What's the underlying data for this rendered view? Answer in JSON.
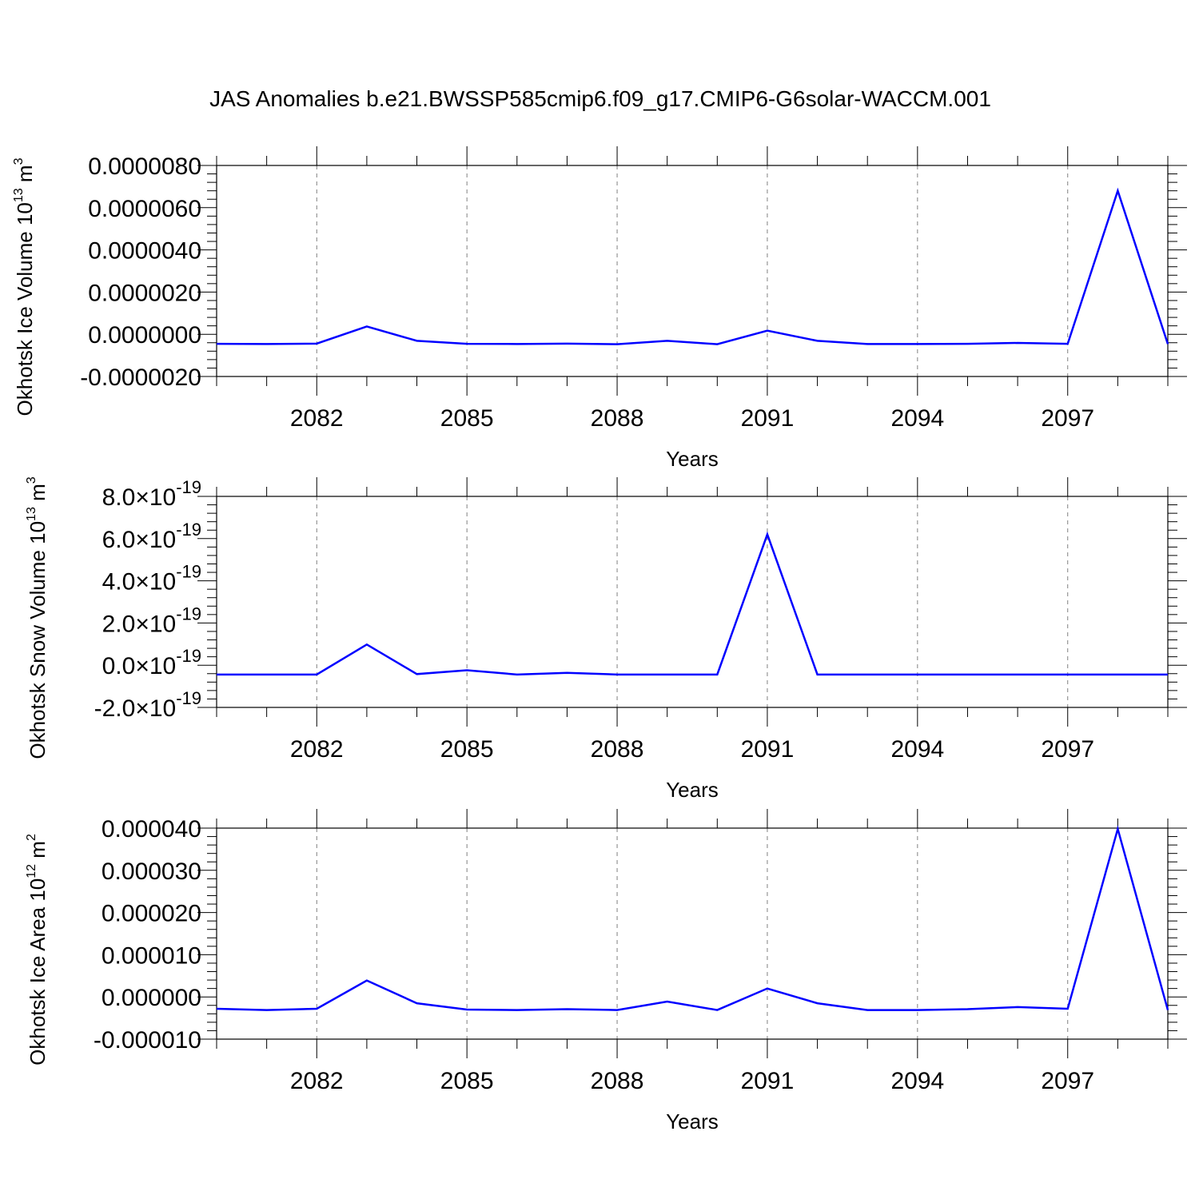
{
  "title": "JAS Anomalies b.e21.BWSSP585cmip6.f09_g17.CMIP6-G6solar-WACCM.001",
  "colors": {
    "line": "#0000ff",
    "axis": "#000000",
    "grid": "#808080"
  },
  "chart_data": [
    {
      "type": "line",
      "ylabel": {
        "text": "Okhotsk Ice Volume 10",
        "sup": "13",
        "unit": " m",
        "unit_sup": "3"
      },
      "xlabel": "Years",
      "xlim": [
        2080,
        2099
      ],
      "ylim": [
        -2e-06,
        8e-06
      ],
      "x_ticks": [
        "2082",
        "2085",
        "2088",
        "2091",
        "2094",
        "2097"
      ],
      "y_ticks": [
        {
          "value": 8e-06,
          "label": "0.0000080"
        },
        {
          "value": 6e-06,
          "label": "0.0000060"
        },
        {
          "value": 4e-06,
          "label": "0.0000040"
        },
        {
          "value": 2e-06,
          "label": "0.0000020"
        },
        {
          "value": 0.0,
          "label": "0.0000000"
        },
        {
          "value": -2e-06,
          "label": "-0.0000020"
        }
      ],
      "grid": "vertical dashed at major x ticks",
      "series": [
        {
          "x": [
            2080,
            2081,
            2082,
            2083,
            2084,
            2085,
            2086,
            2087,
            2088,
            2089,
            2090,
            2091,
            2092,
            2093,
            2094,
            2095,
            2096,
            2097,
            2098,
            2099
          ],
          "values": [
            -4.5e-07,
            -4.6e-07,
            -4.4e-07,
            3.7e-07,
            -3.1e-07,
            -4.5e-07,
            -4.6e-07,
            -4.4e-07,
            -4.7e-07,
            -3.1e-07,
            -4.7e-07,
            1.7e-07,
            -3.1e-07,
            -4.6e-07,
            -4.6e-07,
            -4.5e-07,
            -4.1e-07,
            -4.5e-07,
            6.8e-06,
            -4.6e-07
          ]
        }
      ]
    },
    {
      "type": "line",
      "ylabel": {
        "text": "Okhotsk Snow Volume 10",
        "sup": "13",
        "unit": " m",
        "unit_sup": "3"
      },
      "xlabel": "Years",
      "xlim": [
        2080,
        2099
      ],
      "ylim": [
        -2e-19,
        8e-19
      ],
      "x_ticks": [
        "2082",
        "2085",
        "2088",
        "2091",
        "2094",
        "2097"
      ],
      "y_ticks": [
        {
          "value": 8e-19,
          "mant": "8.0",
          "times": "×10",
          "exp": "-19"
        },
        {
          "value": 6e-19,
          "mant": "6.0",
          "times": "×10",
          "exp": "-19"
        },
        {
          "value": 4e-19,
          "mant": "4.0",
          "times": "×10",
          "exp": "-19"
        },
        {
          "value": 2e-19,
          "mant": "2.0",
          "times": "×10",
          "exp": "-19"
        },
        {
          "value": 0.0,
          "mant": "0.0",
          "times": "×10",
          "exp": "-19"
        },
        {
          "value": -2e-19,
          "mant": "-2.0",
          "times": "×10",
          "exp": "-19"
        }
      ],
      "grid": "vertical dashed at major x ticks",
      "series": [
        {
          "x": [
            2080,
            2081,
            2082,
            2083,
            2084,
            2085,
            2086,
            2087,
            2088,
            2089,
            2090,
            2091,
            2092,
            2093,
            2094,
            2095,
            2096,
            2097,
            2098,
            2099
          ],
          "values": [
            -4.4e-20,
            -4.4e-20,
            -4.4e-20,
            9.8e-20,
            -4.2e-20,
            -2.4e-20,
            -4.4e-20,
            -3.6e-20,
            -4.4e-20,
            -4.4e-20,
            -4.4e-20,
            6.2e-19,
            -4.4e-20,
            -4.4e-20,
            -4.4e-20,
            -4.4e-20,
            -4.4e-20,
            -4.4e-20,
            -4.4e-20,
            -4.4e-20
          ]
        }
      ]
    },
    {
      "type": "line",
      "ylabel": {
        "text": "Okhotsk Ice Area 10",
        "sup": "12",
        "unit": " m",
        "unit_sup": "2"
      },
      "xlabel": "Years",
      "xlim": [
        2080,
        2099
      ],
      "ylim": [
        -1e-05,
        4e-05
      ],
      "x_ticks": [
        "2082",
        "2085",
        "2088",
        "2091",
        "2094",
        "2097"
      ],
      "y_ticks": [
        {
          "value": 4e-05,
          "label": "0.000040"
        },
        {
          "value": 3e-05,
          "label": "0.000030"
        },
        {
          "value": 2e-05,
          "label": "0.000020"
        },
        {
          "value": 1e-05,
          "label": "0.000010"
        },
        {
          "value": 0.0,
          "label": "0.000000"
        },
        {
          "value": -1e-05,
          "label": "-0.000010"
        }
      ],
      "grid": "vertical dashed at major x ticks",
      "series": [
        {
          "x": [
            2080,
            2081,
            2082,
            2083,
            2084,
            2085,
            2086,
            2087,
            2088,
            2089,
            2090,
            2091,
            2092,
            2093,
            2094,
            2095,
            2096,
            2097,
            2098,
            2099
          ],
          "values": [
            -2.8e-06,
            -3.1e-06,
            -2.8e-06,
            3.9e-06,
            -1.5e-06,
            -3e-06,
            -3.1e-06,
            -2.9e-06,
            -3.1e-06,
            -1.1e-06,
            -3.1e-06,
            2e-06,
            -1.5e-06,
            -3.1e-06,
            -3.1e-06,
            -2.9e-06,
            -2.4e-06,
            -2.8e-06,
            3.98e-05,
            -3.1e-06
          ]
        }
      ]
    }
  ]
}
